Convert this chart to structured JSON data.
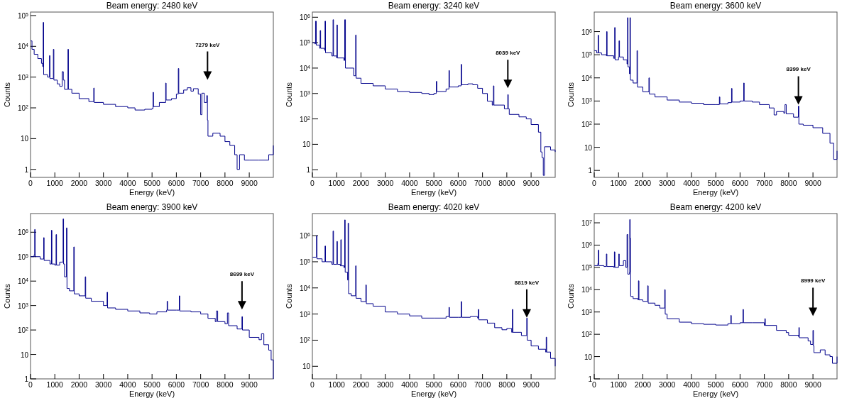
{
  "chart_data": [
    {
      "type": "step",
      "title": "Beam energy: 2480 keV",
      "xlabel": "Energy (keV)",
      "ylabel": "Counts",
      "log": "y",
      "color": "#00008b",
      "xlim": [
        0,
        9990
      ],
      "xticks": [
        0,
        1000,
        2000,
        3000,
        4000,
        5000,
        6000,
        7000,
        8000,
        9000
      ],
      "ylim": [
        0.55,
        130000
      ],
      "yticks": [
        {
          "value": 1,
          "label": "1"
        },
        {
          "value": 10,
          "label": "10"
        },
        {
          "value": 100,
          "label": "10$^{2}$"
        },
        {
          "value": 1000,
          "label": "10$^{3}$"
        },
        {
          "value": 10000,
          "label": "10$^{4}$"
        },
        {
          "value": 100000,
          "label": "10$^{5}$"
        }
      ],
      "annotations": [
        "7279 keV"
      ],
      "x": [
        10,
        60,
        150,
        300,
        450,
        500,
        520,
        540,
        700,
        780,
        800,
        940,
        960,
        1100,
        1200,
        1300,
        1350,
        1400,
        1540,
        1560,
        1700,
        2000,
        2400,
        2600,
        2620,
        3000,
        3500,
        4000,
        4300,
        4700,
        5000,
        5040,
        5060,
        5300,
        5560,
        5580,
        5800,
        6000,
        6080,
        6100,
        6300,
        6450,
        6600,
        6700,
        6900,
        7000,
        7050,
        7150,
        7250,
        7279,
        7300,
        7500,
        7800,
        8000,
        8200,
        8400,
        8500,
        8600,
        8800,
        9000,
        9400,
        9800,
        9990
      ],
      "values": [
        15000,
        8000,
        5500,
        4000,
        2800,
        2200,
        60000,
        1200,
        1000,
        5000,
        900,
        8000,
        800,
        600,
        500,
        1500,
        800,
        400,
        8000,
        400,
        300,
        200,
        160,
        440,
        150,
        130,
        110,
        100,
        85,
        90,
        95,
        320,
        110,
        150,
        640,
        180,
        200,
        280,
        1900,
        300,
        380,
        450,
        350,
        420,
        280,
        60,
        300,
        150,
        250,
        40,
        12,
        15,
        12,
        8,
        6,
        3,
        1,
        3,
        2,
        2,
        2,
        3,
        6
      ]
    },
    {
      "type": "step",
      "title": "Beam energy: 3240 keV",
      "xlabel": "Energy (keV)",
      "ylabel": "Counts",
      "log": "y",
      "color": "#00008b",
      "xlim": [
        0,
        9990
      ],
      "xticks": [
        0,
        1000,
        2000,
        3000,
        4000,
        5000,
        6000,
        7000,
        8000,
        9000
      ],
      "ylim": [
        0.5,
        1600000
      ],
      "yticks": [
        {
          "value": 1,
          "label": "1"
        },
        {
          "value": 10,
          "label": "10"
        },
        {
          "value": 100,
          "label": "10$^{2}$"
        },
        {
          "value": 1000,
          "label": "10$^{3}$"
        },
        {
          "value": 10000,
          "label": "10$^{4}$"
        },
        {
          "value": 100000,
          "label": "10$^{5}$"
        },
        {
          "value": 1000000,
          "label": "10$^{6}$"
        }
      ],
      "annotations": [
        "8039 keV"
      ],
      "x": [
        10,
        100,
        130,
        160,
        300,
        320,
        340,
        500,
        520,
        540,
        800,
        850,
        870,
        1000,
        1010,
        1030,
        1300,
        1330,
        1360,
        1500,
        1700,
        1780,
        1800,
        2000,
        2500,
        3000,
        3500,
        4000,
        4500,
        4800,
        5000,
        5100,
        5120,
        5500,
        5620,
        5640,
        6000,
        6120,
        6140,
        6400,
        6600,
        6800,
        7000,
        7200,
        7400,
        7450,
        7470,
        7900,
        8039,
        8060,
        8100,
        8500,
        8800,
        9000,
        9300,
        9400,
        9450,
        9500,
        9550,
        9800,
        9990
      ],
      "values": [
        100000,
        90000,
        700000,
        80000,
        60000,
        300000,
        60000,
        50000,
        700000,
        40000,
        30000,
        800000,
        30000,
        25000,
        500000,
        25000,
        20000,
        800000,
        10000,
        10000,
        5000,
        200000,
        4000,
        2500,
        2000,
        1500,
        1200,
        1100,
        1000,
        900,
        1000,
        3000,
        1200,
        1500,
        8000,
        1800,
        2000,
        14000,
        2200,
        2400,
        2200,
        1600,
        1000,
        500,
        350,
        2000,
        350,
        250,
        900,
        250,
        150,
        120,
        100,
        60,
        30,
        5,
        3,
        0.6,
        8,
        6,
        5
      ]
    },
    {
      "type": "step",
      "title": "Beam energy: 3600 keV",
      "xlabel": "Energy (keV)",
      "ylabel": "Counts",
      "log": "y",
      "color": "#00008b",
      "xlim": [
        0,
        9990
      ],
      "xticks": [
        0,
        1000,
        2000,
        3000,
        4000,
        5000,
        6000,
        7000,
        8000,
        9000
      ],
      "ylim": [
        0.5,
        7000000
      ],
      "yticks": [
        {
          "value": 1,
          "label": "1"
        },
        {
          "value": 10,
          "label": "10"
        },
        {
          "value": 100,
          "label": "10$^{2}$"
        },
        {
          "value": 1000,
          "label": "10$^{3}$"
        },
        {
          "value": 10000,
          "label": "10$^{4}$"
        },
        {
          "value": 100000,
          "label": "10$^{5}$"
        },
        {
          "value": 1000000,
          "label": "10$^{6}$"
        }
      ],
      "annotations": [
        "8399 keV"
      ],
      "x": [
        10,
        100,
        160,
        180,
        300,
        500,
        510,
        530,
        800,
        840,
        860,
        1000,
        1020,
        1040,
        1200,
        1350,
        1370,
        1390,
        1450,
        1470,
        1490,
        1600,
        1760,
        1780,
        2000,
        2250,
        2270,
        2500,
        3000,
        3500,
        4000,
        4500,
        5000,
        5150,
        5170,
        5500,
        5650,
        5670,
        6000,
        6150,
        6170,
        6500,
        6800,
        7200,
        7400,
        7500,
        7800,
        7850,
        7900,
        8200,
        8399,
        8420,
        8600,
        9000,
        9400,
        9700,
        9850,
        9990
      ],
      "values": [
        150000,
        120000,
        700000,
        120000,
        100000,
        90000,
        1000000,
        90000,
        70000,
        1500000,
        60000,
        80000,
        400000,
        80000,
        60000,
        40000,
        4000000,
        30000,
        15000,
        4000000,
        8000,
        6000,
        150000,
        4000,
        2500,
        10000,
        2000,
        1500,
        1100,
        900,
        800,
        700,
        700,
        1500,
        750,
        850,
        3500,
        900,
        1000,
        6000,
        1000,
        900,
        700,
        500,
        250,
        350,
        300,
        700,
        280,
        200,
        600,
        100,
        90,
        70,
        40,
        15,
        3,
        7
      ]
    },
    {
      "type": "step",
      "title": "Beam energy: 3900 keV",
      "xlabel": "Energy (keV)",
      "ylabel": "Counts",
      "log": "y",
      "color": "#00008b",
      "xlim": [
        0,
        9990
      ],
      "xticks": [
        0,
        1000,
        2000,
        3000,
        4000,
        5000,
        6000,
        7000,
        8000,
        9000
      ],
      "ylim": [
        1,
        5800000
      ],
      "yticks": [
        {
          "value": 1,
          "label": "1"
        },
        {
          "value": 10,
          "label": "10"
        },
        {
          "value": 100,
          "label": "10$^{2}$"
        },
        {
          "value": 1000,
          "label": "10$^{3}$"
        },
        {
          "value": 10000,
          "label": "10$^{4}$"
        },
        {
          "value": 100000,
          "label": "10$^{5}$"
        },
        {
          "value": 1000000,
          "label": "10$^{6}$"
        }
      ],
      "annotations": [
        "8699 keV"
      ],
      "x": [
        10,
        150,
        170,
        190,
        400,
        540,
        560,
        800,
        860,
        880,
        1000,
        1050,
        1070,
        1200,
        1340,
        1360,
        1400,
        1480,
        1500,
        1600,
        1780,
        1800,
        2000,
        2250,
        2270,
        2500,
        3000,
        3150,
        3170,
        3500,
        4000,
        4500,
        4900,
        5200,
        5600,
        5620,
        5640,
        6000,
        6120,
        6140,
        6600,
        7000,
        7300,
        7600,
        7650,
        7700,
        8000,
        8100,
        8150,
        8500,
        8699,
        8720,
        9000,
        9400,
        9500,
        9600,
        9800,
        9900,
        9990
      ],
      "values": [
        100000,
        120000,
        1300000,
        100000,
        80000,
        600000,
        70000,
        50000,
        1200000,
        50000,
        45000,
        800000,
        45000,
        60000,
        3500000,
        50000,
        15000,
        1500000,
        5000,
        4000,
        250000,
        3000,
        2500,
        15000,
        2000,
        1500,
        1000,
        3500,
        800,
        700,
        600,
        500,
        450,
        550,
        650,
        1500,
        650,
        650,
        2500,
        600,
        550,
        450,
        300,
        220,
        600,
        220,
        180,
        500,
        150,
        110,
        350,
        100,
        50,
        40,
        70,
        25,
        15,
        6,
        1
      ]
    },
    {
      "type": "step",
      "title": "Beam energy: 4020 keV",
      "xlabel": "Energy (keV)",
      "ylabel": "Counts",
      "log": "y",
      "color": "#00008b",
      "xlim": [
        0,
        9990
      ],
      "xticks": [
        0,
        1000,
        2000,
        3000,
        4000,
        5000,
        6000,
        7000,
        8000,
        9000
      ],
      "ylim": [
        3.3,
        7000000
      ],
      "yticks": [
        {
          "value": 10,
          "label": "10"
        },
        {
          "value": 100,
          "label": "10$^{2}$"
        },
        {
          "value": 1000,
          "label": "10$^{3}$"
        },
        {
          "value": 10000,
          "label": "10$^{4}$"
        },
        {
          "value": 100000,
          "label": "10$^{5}$"
        },
        {
          "value": 1000000,
          "label": "10$^{6}$"
        }
      ],
      "annotations": [
        "8819 keV"
      ],
      "x": [
        10,
        150,
        170,
        190,
        400,
        520,
        540,
        800,
        850,
        870,
        1000,
        1010,
        1030,
        1150,
        1170,
        1190,
        1300,
        1330,
        1350,
        1450,
        1470,
        1490,
        1600,
        1780,
        1800,
        2000,
        2200,
        2220,
        2500,
        3000,
        3500,
        4000,
        4500,
        5000,
        5500,
        5620,
        5640,
        6000,
        6120,
        6140,
        6500,
        6800,
        6830,
        6850,
        7200,
        7500,
        7800,
        8000,
        8200,
        8230,
        8250,
        8600,
        8819,
        8840,
        9000,
        9300,
        9600,
        9620,
        9640,
        9800,
        9990
      ],
      "values": [
        150000,
        150000,
        1000000,
        130000,
        100000,
        400000,
        100000,
        80000,
        1500000,
        80000,
        80000,
        600000,
        80000,
        70000,
        700000,
        70000,
        60000,
        4000000,
        40000,
        20000,
        3000000,
        6000,
        5000,
        70000,
        4000,
        3000,
        13000,
        2500,
        2000,
        1200,
        1000,
        850,
        700,
        700,
        800,
        1800,
        750,
        750,
        3000,
        750,
        800,
        700,
        1500,
        600,
        450,
        300,
        250,
        280,
        200,
        1500,
        200,
        150,
        700,
        100,
        60,
        45,
        35,
        130,
        35,
        20,
        10
      ]
    },
    {
      "type": "step",
      "title": "Beam energy: 4200 keV",
      "xlabel": "Energy (keV)",
      "ylabel": "Counts",
      "log": "y",
      "color": "#00008b",
      "xlim": [
        0,
        9990
      ],
      "xticks": [
        0,
        1000,
        2000,
        3000,
        4000,
        5000,
        6000,
        7000,
        8000,
        9000
      ],
      "ylim": [
        1,
        26000000
      ],
      "yticks": [
        {
          "value": 1,
          "label": "1"
        },
        {
          "value": 10,
          "label": "10"
        },
        {
          "value": 100,
          "label": "10$^{2}$"
        },
        {
          "value": 1000,
          "label": "10$^{3}$"
        },
        {
          "value": 10000,
          "label": "10$^{4}$"
        },
        {
          "value": 100000,
          "label": "10$^{5}$"
        },
        {
          "value": 1000000,
          "label": "10$^{6}$"
        },
        {
          "value": 10000000,
          "label": "10$^{7}$"
        }
      ],
      "annotations": [
        "8999 keV"
      ],
      "x": [
        10,
        150,
        170,
        190,
        400,
        500,
        520,
        800,
        830,
        850,
        1000,
        1010,
        1030,
        1200,
        1300,
        1350,
        1380,
        1450,
        1460,
        1480,
        1500,
        1600,
        1800,
        1820,
        1840,
        2000,
        2200,
        2220,
        2500,
        2700,
        2900,
        2920,
        3000,
        3500,
        4000,
        4500,
        5000,
        5500,
        5620,
        5640,
        6000,
        6120,
        6140,
        6500,
        7000,
        7020,
        7040,
        7500,
        7900,
        8000,
        8400,
        8420,
        8440,
        8800,
        8900,
        8999,
        9020,
        9040,
        9300,
        9500,
        9700,
        9800,
        9990
      ],
      "values": [
        120000,
        150000,
        600000,
        120000,
        110000,
        400000,
        110000,
        100000,
        500000,
        100000,
        120000,
        400000,
        120000,
        200000,
        100000,
        3000000,
        50000,
        60000,
        14000000,
        2000000,
        5000,
        4000,
        3500,
        25000,
        3500,
        3000,
        15000,
        2500,
        2000,
        1500,
        10000,
        800,
        500,
        350,
        300,
        280,
        260,
        300,
        700,
        300,
        330,
        1300,
        330,
        330,
        250,
        500,
        250,
        150,
        120,
        90,
        80,
        200,
        70,
        50,
        35,
        150,
        30,
        15,
        20,
        12,
        10,
        5,
        10
      ]
    }
  ]
}
